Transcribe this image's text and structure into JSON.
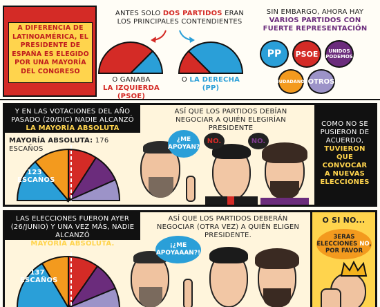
{
  "top": {
    "flag_text": "A DIFERENCIA DE LATINOAMÉRICA, EL PRESIDENTE DE ESPAÑA ES ELEGIDO POR UNA MAYORÍA DEL CONGRESO",
    "before_title_a": "ANTES SOLO ",
    "before_title_b": "DOS PARTIDOS",
    "before_title_c": " ERAN LOS PRINCIPALES CONTENDIENTES",
    "left_label_a": "O GANABA",
    "left_label_b": "LA IZQUIERDA (PSOE)",
    "right_label_a": "O ",
    "right_label_b": "LA DERECHA (PP)",
    "however_a": "SIN EMBARGO, AHORA HAY",
    "however_b": "VARIOS PARTIDOS CON FUERTE REPRESENTACIÓN",
    "parties": {
      "pp": "PP",
      "psoe": "PSOE",
      "up": "UNIDOS PODEMOS",
      "cs": "CIUDADANOS",
      "otros": "OTROS"
    },
    "colors": {
      "pp": "#2a9fd8",
      "psoe": "#d42b26",
      "up": "#6b2c7c",
      "cs": "#f39a1e",
      "otros": "#9c93c8"
    }
  },
  "panel2": {
    "caption_a": "Y EN LAS VOTACIONES DEL AÑO PASADO (20/DIC) NADIE ALCANZÓ",
    "caption_b": "LA MAYORÍA ABSOLUTA",
    "majority_label_a": "MAYORÍA ABSOLUTA:",
    "majority_label_b": " 176 ESCAÑOS",
    "seats_text": "123 ESCAÑOS",
    "narration": "ASÍ QUE LOS PARTIDOS DEBÍAN NEGOCIAR A QUIÉN ELEGIRÍAN PRESIDENTE",
    "bubble_rajoy": "¿ME APOYAN?",
    "bubble_sanchez": "NO.",
    "bubble_iglesias": "NO.",
    "side_a": "COMO NO SE PUSIERON DE ACUERDO,",
    "side_b": "TUVIERON QUE CONVOCAR A NUEVAS ELECCIONES"
  },
  "panel3": {
    "caption_a": "LAS ELECCIONES FUERON AYER (26/JUNIO) Y UNA VEZ MÁS, NADIE ALCANZÓ",
    "caption_b": "MAYORÍA ABSOLUTA.",
    "seats_text": "137 ESCAÑOS",
    "narration": "ASÍ QUE LOS PARTIDOS DEBERÁN NEGOCIAR (OTRA VEZ) A QUIÉN ELIGEN PRESIDENTE.",
    "bubble_rajoy": "¡¿ME APOYAAAN?!",
    "side_title": "O SI NO...",
    "side_bubble_a": "3ERAS ELECCIONES ",
    "side_bubble_b": "NO",
    "side_bubble_c": ", POR FAVOR"
  }
}
